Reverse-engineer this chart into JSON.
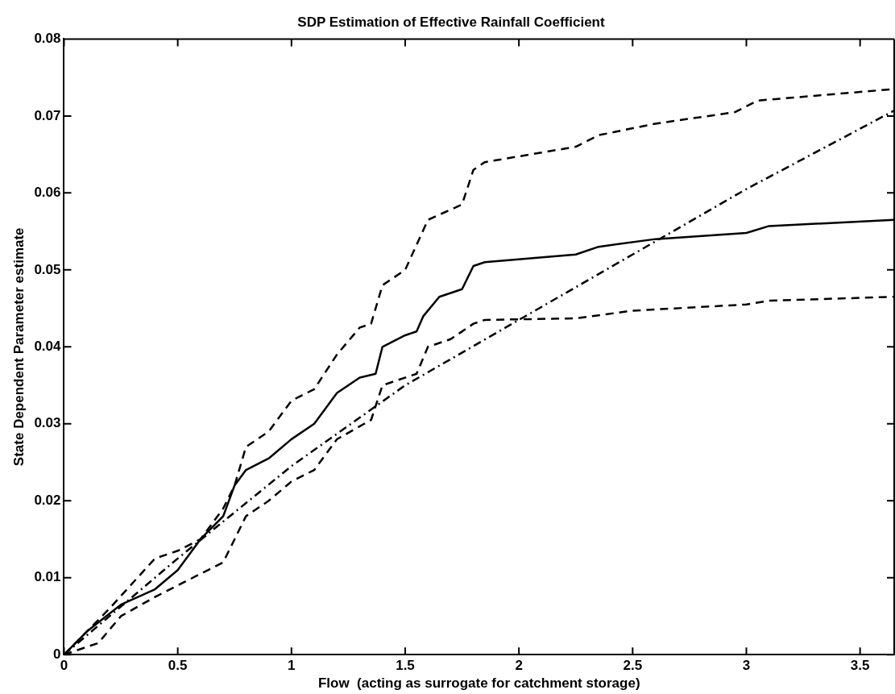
{
  "chart_data": {
    "type": "line",
    "title": "SDP Estimation of Effective Rainfall Coefficient",
    "xlabel": "Flow  (acting as surrogate for catchment storage)",
    "ylabel": "State Dependent Parameter estimate",
    "xlim": [
      0,
      3.65
    ],
    "xticks": [
      0,
      0.5,
      1,
      1.5,
      2,
      2.5,
      3,
      3.5
    ],
    "ylim": [
      0,
      0.08
    ],
    "yticks": [
      0,
      0.01,
      0.02,
      0.03,
      0.04,
      0.05,
      0.06,
      0.07,
      0.08
    ],
    "grid": false,
    "legend": false,
    "marker": "none",
    "series": [
      {
        "color": "#000000",
        "line_style": "solid",
        "x": [
          0,
          0.1,
          0.25,
          0.4,
          0.5,
          0.6,
          0.7,
          0.75,
          0.8,
          0.9,
          1.0,
          1.1,
          1.2,
          1.3,
          1.37,
          1.4,
          1.5,
          1.55,
          1.58,
          1.65,
          1.75,
          1.8,
          1.85,
          2.25,
          2.35,
          2.6,
          3.0,
          3.1,
          3.65
        ],
        "values": [
          0,
          0.003,
          0.0065,
          0.0085,
          0.011,
          0.015,
          0.018,
          0.022,
          0.024,
          0.0255,
          0.028,
          0.03,
          0.034,
          0.036,
          0.0365,
          0.04,
          0.0415,
          0.042,
          0.044,
          0.0465,
          0.0475,
          0.0505,
          0.051,
          0.052,
          0.053,
          0.054,
          0.0548,
          0.0557,
          0.0565
        ]
      },
      {
        "color": "#000000",
        "line_style": "dashed",
        "x": [
          0,
          0.2,
          0.4,
          0.5,
          0.6,
          0.7,
          0.75,
          0.8,
          0.9,
          1.0,
          1.1,
          1.2,
          1.3,
          1.35,
          1.4,
          1.5,
          1.6,
          1.75,
          1.8,
          1.85,
          2.25,
          2.35,
          2.6,
          2.95,
          3.05,
          3.65
        ],
        "values": [
          0,
          0.006,
          0.0125,
          0.0135,
          0.015,
          0.019,
          0.022,
          0.027,
          0.029,
          0.033,
          0.0345,
          0.039,
          0.0425,
          0.043,
          0.048,
          0.05,
          0.0565,
          0.0585,
          0.063,
          0.064,
          0.066,
          0.0675,
          0.069,
          0.0705,
          0.072,
          0.0735
        ]
      },
      {
        "color": "#000000",
        "line_style": "dashed",
        "x": [
          0,
          0.15,
          0.25,
          0.4,
          0.5,
          0.7,
          0.75,
          0.8,
          0.9,
          1.0,
          1.1,
          1.2,
          1.35,
          1.4,
          1.55,
          1.6,
          1.7,
          1.8,
          1.85,
          2.25,
          2.5,
          3.0,
          3.1,
          3.65
        ],
        "values": [
          0,
          0.0015,
          0.005,
          0.0075,
          0.009,
          0.012,
          0.015,
          0.018,
          0.02,
          0.0225,
          0.024,
          0.028,
          0.0305,
          0.035,
          0.0365,
          0.04,
          0.041,
          0.043,
          0.0435,
          0.0437,
          0.0447,
          0.0455,
          0.046,
          0.0465
        ]
      },
      {
        "color": "#000000",
        "line_style": "dashdot",
        "x": [
          0,
          0.5,
          1,
          1.5,
          2,
          2.5,
          3,
          3.65
        ],
        "values": [
          0,
          0.0125,
          0.0245,
          0.035,
          0.0435,
          0.052,
          0.0605,
          0.0707
        ]
      }
    ]
  }
}
